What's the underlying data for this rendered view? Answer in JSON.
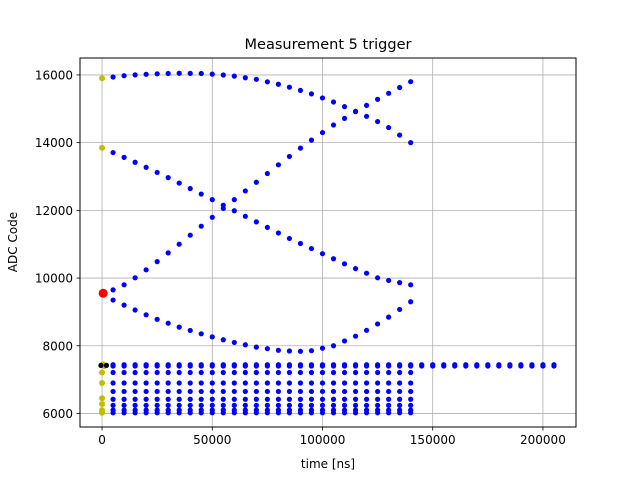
{
  "chart_data": {
    "type": "scatter",
    "title": "Measurement 5 trigger",
    "xlabel": "time [ns]",
    "ylabel": "ADC Code",
    "xlim": [
      -10000,
      215000
    ],
    "ylim": [
      5600,
      16500
    ],
    "xticks": [
      0,
      50000,
      100000,
      150000,
      200000
    ],
    "yticks": [
      6000,
      8000,
      10000,
      12000,
      14000,
      16000
    ],
    "grid": true,
    "colors": {
      "main": "#0000ff",
      "start": "#bfbf00",
      "marker": "#ff0000",
      "baseline": "#000000"
    },
    "series": [
      {
        "color": "main",
        "kind": "curve",
        "x_start": 0,
        "x_end": 140000,
        "y": [
          15900,
          15990,
          16030,
          16050,
          16040,
          15980,
          15870,
          15700,
          15480,
          15200,
          14880,
          14520,
          14000
        ]
      },
      {
        "color": "main",
        "kind": "curve",
        "x_start": 0,
        "x_end": 140000,
        "y": [
          13850,
          13450,
          13030,
          12580,
          12120,
          11660,
          11200,
          10780,
          10360,
          9980,
          9800
        ]
      },
      {
        "color": "main",
        "kind": "curve",
        "x_start": 0,
        "x_end": 140000,
        "y": [
          9500,
          9850,
          10400,
          11000,
          11620,
          12230,
          12830,
          13430,
          14000,
          14520,
          14980,
          15400,
          15800
        ]
      },
      {
        "color": "main",
        "kind": "curve",
        "x_start": 0,
        "x_end": 140000,
        "y": [
          9500,
          9150,
          8820,
          8550,
          8320,
          8120,
          7960,
          7850,
          7830,
          8000,
          8330,
          8770,
          9300
        ]
      },
      {
        "color": "main",
        "kind": "flat",
        "x_start": 0,
        "x_end": 140000,
        "y": 7210
      },
      {
        "color": "main",
        "kind": "flat",
        "x_start": 0,
        "x_end": 140000,
        "y": 6900
      },
      {
        "color": "main",
        "kind": "flat",
        "x_start": 0,
        "x_end": 140000,
        "y": 6650
      },
      {
        "color": "main",
        "kind": "flat",
        "x_start": 0,
        "x_end": 140000,
        "y": 6420
      },
      {
        "color": "main",
        "kind": "flat",
        "x_start": 0,
        "x_end": 140000,
        "y": 6240
      },
      {
        "color": "main",
        "kind": "flat",
        "x_start": 0,
        "x_end": 140000,
        "y": 6100
      },
      {
        "color": "main",
        "kind": "flat",
        "x_start": 0,
        "x_end": 140000,
        "y": 6020
      },
      {
        "color": "main",
        "kind": "flat",
        "x_start": 0,
        "x_end": 205000,
        "y": 7440
      },
      {
        "color": "main",
        "kind": "flat",
        "x_start": 0,
        "x_end": 205000,
        "y": 7400
      }
    ],
    "start_points": [
      {
        "x": 0,
        "y": 15900
      },
      {
        "x": 0,
        "y": 13850
      },
      {
        "x": 500,
        "y": 7450
      },
      {
        "x": 1000,
        "y": 7400
      },
      {
        "x": 0,
        "y": 7210
      },
      {
        "x": 0,
        "y": 6900
      },
      {
        "x": 0,
        "y": 6450
      },
      {
        "x": 0,
        "y": 6280
      },
      {
        "x": 0,
        "y": 6100
      },
      {
        "x": 0,
        "y": 6020
      }
    ],
    "highlight_point": {
      "x": 500,
      "y": 9550
    },
    "baseline_points": [
      {
        "x": -500,
        "y": 7420
      },
      {
        "x": 2000,
        "y": 7420
      }
    ]
  }
}
